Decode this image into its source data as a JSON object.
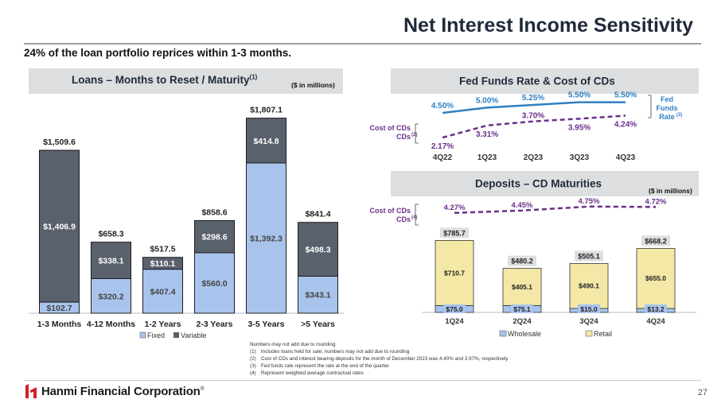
{
  "title": "Net Interest Income Sensitivity",
  "subtitle": "24% of the loan portfolio reprices within 1-3 months.",
  "loans_panel": {
    "title": "Loans – Months to Reset / Maturity",
    "title_sup": "(1)",
    "units": "($ in millions)"
  },
  "fed_panel": {
    "title": "Fed Funds Rate & Cost of CDs"
  },
  "deposits_panel": {
    "title": "Deposits – CD Maturities",
    "units": "($ in millions)"
  },
  "colors": {
    "fixed": "#a9c4ec",
    "variable": "#59616d",
    "wholesale": "#a9c4ec",
    "retail": "#f3e8a6",
    "fed_line": "#2f7fc1",
    "cd_line": "#6b2e8c",
    "cost_label": "#6b2e8c"
  },
  "chart_data": [
    {
      "type": "bar",
      "subtype": "stacked",
      "title": "Loans – Months to Reset / Maturity(1)",
      "categories": [
        "1-3 Months",
        "4-12 Months",
        "1-2 Years",
        "2-3 Years",
        "3-5 Years",
        ">5 Years"
      ],
      "series": [
        {
          "name": "Fixed",
          "values": [
            102.7,
            320.2,
            407.4,
            560.0,
            1392.3,
            343.1
          ],
          "labels": [
            "$102.7",
            "$320.2",
            "$407.4",
            "$560.0",
            "$1,392.3",
            "$343.1"
          ]
        },
        {
          "name": "Variable",
          "values": [
            1406.9,
            338.1,
            110.1,
            298.6,
            414.8,
            498.3
          ],
          "labels": [
            "$1,406.9",
            "$338.1",
            "$110.1",
            "$298.6",
            "$414.8",
            "$498.3"
          ]
        }
      ],
      "totals": [
        "$1,509.6",
        "$658.3",
        "$517.5",
        "$858.6",
        "$1,807.1",
        "$841.4"
      ],
      "total_values": [
        1509.6,
        658.3,
        517.5,
        858.6,
        1807.1,
        841.4
      ],
      "ylim": [
        0,
        1900
      ],
      "legend": [
        "Fixed",
        "Variable"
      ],
      "legend_position": "bottom"
    },
    {
      "type": "line",
      "title": "Fed Funds Rate & Cost of CDs",
      "x": [
        "4Q22",
        "1Q23",
        "2Q23",
        "3Q23",
        "4Q23"
      ],
      "series": [
        {
          "name": "Fed Funds Rate(3)",
          "values": [
            4.5,
            5.0,
            5.25,
            5.5,
            5.5
          ],
          "labels": [
            "4.50%",
            "5.00%",
            "5.25%",
            "5.50%",
            "5.50%"
          ],
          "style": "solid"
        },
        {
          "name": "Cost of CDs(2)",
          "values": [
            2.17,
            3.31,
            3.7,
            3.95,
            4.24
          ],
          "labels": [
            "2.17%",
            "3.31%",
            "3.70%",
            "3.95%",
            "4.24%"
          ],
          "style": "dashed"
        }
      ],
      "series_labels": {
        "fed": "Fed Funds Rate",
        "fed_sup": "(3)",
        "cost": "Cost of CDs",
        "cost_sup": "(2)"
      },
      "ylim": [
        1.5,
        6.0
      ]
    },
    {
      "type": "bar",
      "subtype": "stacked",
      "title": "Deposits – CD Maturities",
      "categories": [
        "1Q24",
        "2Q24",
        "3Q24",
        "4Q24"
      ],
      "series": [
        {
          "name": "Wholesale",
          "values": [
            75.0,
            75.1,
            15.0,
            13.2
          ],
          "labels": [
            "$75.0",
            "$75.1",
            "$15.0",
            "$13.2"
          ]
        },
        {
          "name": "Retail",
          "values": [
            710.7,
            405.1,
            490.1,
            655.0
          ],
          "labels": [
            "$710.7",
            "$405.1",
            "$490.1",
            "$655.0"
          ]
        }
      ],
      "totals": [
        "$785.7",
        "$480.2",
        "$505.1",
        "$668.2"
      ],
      "total_values": [
        785.7,
        480.2,
        505.1,
        668.2
      ],
      "cost_of_cds": {
        "label": "Cost of CDs",
        "sup": "(4)",
        "values": [
          4.27,
          4.45,
          4.75,
          4.72
        ],
        "labels": [
          "4.27%",
          "4.45%",
          "4.75%",
          "4.72%"
        ]
      },
      "ylim": [
        0,
        850
      ],
      "legend": [
        "Wholesale",
        "Retail"
      ],
      "legend_position": "bottom"
    }
  ],
  "footnotes": {
    "header": "Numbers may not add due to rounding",
    "items": [
      {
        "num": "(1)",
        "text": "Includes loans held for sale; numbers may not add due to rounding"
      },
      {
        "num": "(2)",
        "text": "Cost of CDs and interest bearing-deposits for the month of December 2023 was 4.40% and 3.97%, respectively"
      },
      {
        "num": "(3)",
        "text": "Fed funds rate represent the rate at the end of the quarter"
      },
      {
        "num": "(4)",
        "text": "Represent weighted average contractual rates"
      }
    ]
  },
  "footer": {
    "company": "Hanmi Financial Corporation",
    "tm": "®",
    "page": "27"
  }
}
